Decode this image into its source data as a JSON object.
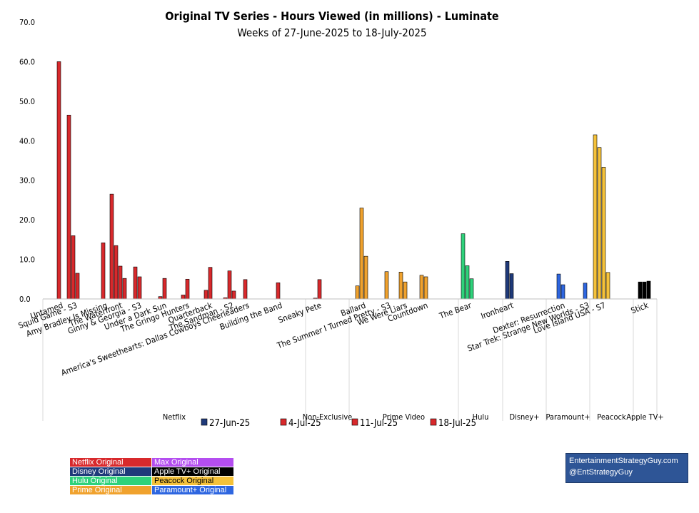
{
  "colors": {
    "netflix": "#d8292c",
    "disney": "#1f3a7a",
    "hulu": "#2fd27b",
    "prime": "#f0a22e",
    "peacock": "#f5c23a",
    "apple": "#000000",
    "paramount": "#2e66e0",
    "max": "#b44ef0",
    "legend_27": "#1f3a7a",
    "legend_other": "#d8292c"
  },
  "chart_data": {
    "type": "bar",
    "title": "Original TV Series - Hours Viewed (in millions) - Luminate",
    "subtitle": "Weeks of 27-June-2025 to 18-July-2025",
    "ylim": [
      0,
      70
    ],
    "yticks": [
      "0.0",
      "10.0",
      "20.0",
      "30.0",
      "40.0",
      "50.0",
      "60.0",
      "70.0"
    ],
    "series_names": [
      "27-Jun-25",
      "4-Jul-25",
      "11-Jul-25",
      "18-Jul-25"
    ],
    "shows": [
      {
        "name": "Untamed",
        "group": "Netflix",
        "color": "netflix",
        "values": [
          null,
          60.0,
          null,
          null
        ]
      },
      {
        "name": "Squid Game - S3",
        "group": "Netflix",
        "color": "netflix",
        "values": [
          46.5,
          16.0,
          6.5,
          null
        ]
      },
      {
        "name": "Amy Bradley Is Missing",
        "group": "Netflix",
        "color": "netflix",
        "values": [
          null,
          null,
          null,
          14.2
        ]
      },
      {
        "name": "The Waterfront",
        "group": "Netflix",
        "color": "netflix",
        "values": [
          26.5,
          13.5,
          8.3,
          5.2
        ]
      },
      {
        "name": "Ginny & Georgia - S3",
        "group": "Netflix",
        "color": "netflix",
        "values": [
          null,
          8.1,
          5.6,
          null
        ]
      },
      {
        "name": "Under a Dark Sun",
        "group": "Netflix",
        "color": "netflix",
        "values": [
          null,
          0.6,
          5.2,
          null
        ]
      },
      {
        "name": "The Gringo Hunters",
        "group": "Netflix",
        "color": "netflix",
        "values": [
          null,
          1.0,
          5.0,
          null
        ]
      },
      {
        "name": "Quarterback",
        "group": "Netflix",
        "color": "netflix",
        "values": [
          null,
          2.2,
          8.0,
          null
        ]
      },
      {
        "name": "The Sandman - S2",
        "group": "Netflix",
        "color": "netflix",
        "values": [
          null,
          0.3,
          7.1,
          2.0
        ]
      },
      {
        "name": "America's Sweethearts: Dallas Cowboys Cheerleaders",
        "group": "Netflix",
        "color": "netflix",
        "values": [
          null,
          null,
          4.9,
          null
        ]
      },
      {
        "name": "Building the Band",
        "group": "Netflix",
        "color": "netflix",
        "values": [
          null,
          null,
          null,
          4.1
        ]
      },
      {
        "name": "Sneaky Pete",
        "group": "Non-Exclusive",
        "color": "netflix",
        "values": [
          null,
          0.2,
          4.9,
          null
        ]
      },
      {
        "name": "Ballard",
        "group": "Prime Video",
        "color": "prime",
        "values": [
          null,
          3.3,
          23.0,
          10.8
        ]
      },
      {
        "name": "The Summer I Turned Pretty - S3",
        "group": "Prime Video",
        "color": "prime",
        "values": [
          null,
          null,
          null,
          6.9
        ]
      },
      {
        "name": "We Were Liars",
        "group": "Prime Video",
        "color": "prime",
        "values": [
          null,
          6.8,
          4.3,
          null
        ]
      },
      {
        "name": "Countdown",
        "group": "Prime Video",
        "color": "prime",
        "values": [
          null,
          6.0,
          5.6,
          null
        ]
      },
      {
        "name": "The Bear",
        "group": "Hulu",
        "color": "hulu",
        "values": [
          16.5,
          8.4,
          5.1,
          null
        ]
      },
      {
        "name": "Ironheart",
        "group": "Disney+",
        "color": "disney",
        "values": [
          9.5,
          6.4,
          null,
          null
        ]
      },
      {
        "name": "Dexter: Resurrection",
        "group": "Paramount+",
        "color": "paramount",
        "values": [
          6.3,
          3.6,
          null,
          null
        ]
      },
      {
        "name": "Star Trek: Strange New Worlds - S3",
        "group": "Paramount+",
        "color": "paramount",
        "values": [
          null,
          null,
          4.0,
          null
        ]
      },
      {
        "name": "Love Island USA - S7",
        "group": "Peacock",
        "color": "peacock",
        "values": [
          41.5,
          38.3,
          33.3,
          6.7
        ]
      },
      {
        "name": "Stick",
        "group": "Apple TV+",
        "color": "apple",
        "values": [
          4.3,
          4.3,
          null,
          4.5
        ]
      }
    ],
    "groups": [
      "Netflix",
      "Non-Exclusive",
      "Prime Video",
      "Hulu",
      "Disney+",
      "Paramount+",
      "Peacock",
      "Apple TV+"
    ]
  },
  "legend_key": [
    {
      "label": "Netflix Original",
      "color": "netflix"
    },
    {
      "label": "Max Original",
      "color": "max"
    },
    {
      "label": "Disney Original",
      "color": "disney"
    },
    {
      "label": "Apple TV+ Original",
      "color": "apple"
    },
    {
      "label": "Hulu Original",
      "color": "hulu"
    },
    {
      "label": "Peacock Original",
      "color": "peacock"
    },
    {
      "label": "Prime Original",
      "color": "prime"
    },
    {
      "label": "Paramount+ Original",
      "color": "paramount"
    }
  ],
  "credit": {
    "line1": "EntertainmentStrategyGuy.com",
    "line2": "@EntStrategyGuy"
  }
}
